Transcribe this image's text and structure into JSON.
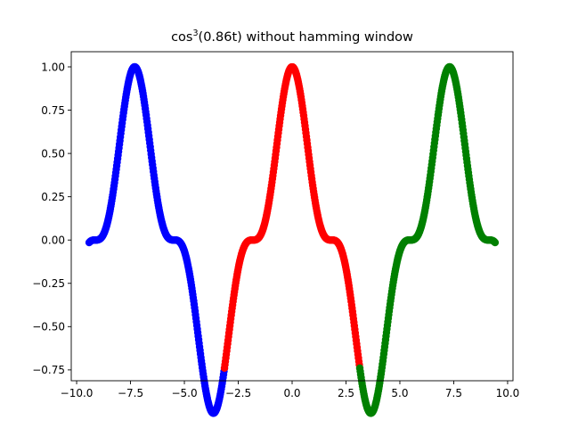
{
  "chart_data": {
    "type": "scatter",
    "title": {
      "prefix": "cos",
      "superscript": "3",
      "suffix": "(0.86t) without hamming window"
    },
    "xlabel": "",
    "ylabel": "",
    "xlim": [
      -10.25,
      10.25
    ],
    "ylim": [
      -0.8125,
      1.0875
    ],
    "function": "cos(0.86t)^3",
    "x_ticks": [
      -10.0,
      -7.5,
      -5.0,
      -2.5,
      0.0,
      2.5,
      5.0,
      7.5,
      10.0
    ],
    "x_tick_labels": [
      "−10.0",
      "−7.5",
      "−5.0",
      "−2.5",
      "0.0",
      "2.5",
      "5.0",
      "7.5",
      "10.0"
    ],
    "y_ticks": [
      -0.75,
      -0.5,
      -0.25,
      0.0,
      0.25,
      0.5,
      0.75,
      1.0
    ],
    "y_tick_labels": [
      "−0.75",
      "−0.50",
      "−0.25",
      "0.00",
      "0.25",
      "0.50",
      "0.75",
      "1.00"
    ],
    "grid": false,
    "series": [
      {
        "color": "#0000ff",
        "x_range": [
          -9.42,
          -3.14
        ],
        "num_points": 300
      },
      {
        "color": "#ff0000",
        "x_range": [
          -3.14,
          3.14
        ],
        "num_points": 300
      },
      {
        "color": "#008000",
        "x_range": [
          3.14,
          9.42
        ],
        "num_points": 300
      }
    ]
  }
}
